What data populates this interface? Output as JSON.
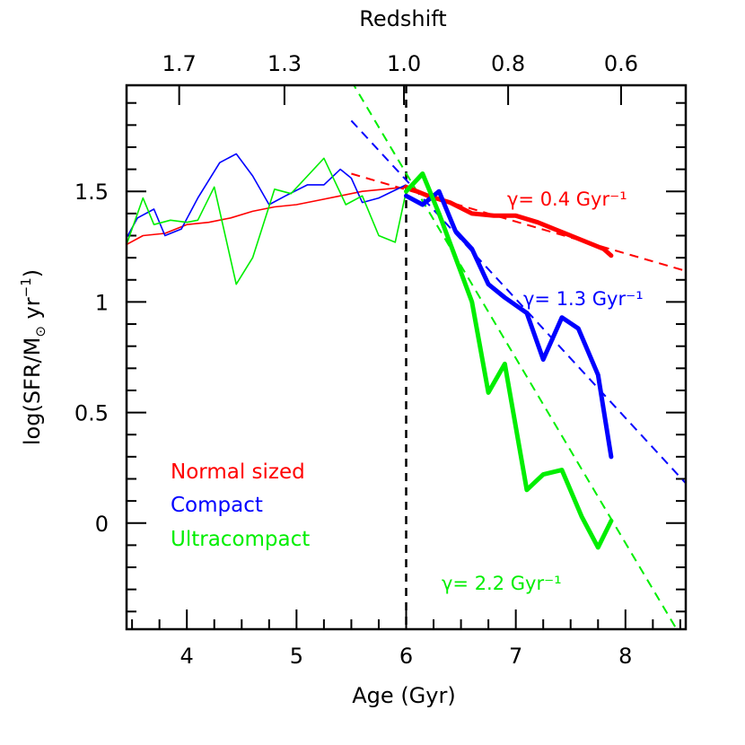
{
  "chart_data": {
    "type": "line",
    "xlabel": "Age (Gyr)",
    "x2label": "Redshift",
    "xlim": [
      3.45,
      8.55
    ],
    "ylim": [
      -0.48,
      1.98
    ],
    "x_ticks": [
      4,
      5,
      6,
      7,
      8
    ],
    "x_tick_labels": [
      "4",
      "5",
      "6",
      "7",
      "8"
    ],
    "y_ticks": [
      0,
      0.5,
      1,
      1.5
    ],
    "y_tick_labels": [
      "0",
      "0.5",
      "1",
      "1.5"
    ],
    "top_ticks": [
      {
        "age": 3.93,
        "label": "1.7"
      },
      {
        "age": 4.89,
        "label": "1.3"
      },
      {
        "age": 5.98,
        "label": "1.0"
      },
      {
        "age": 6.93,
        "label": "0.8"
      },
      {
        "age": 7.96,
        "label": "0.6"
      }
    ],
    "vline_age": 6.0,
    "colors": {
      "normal": "#ff0000",
      "compact": "#0000ff",
      "ultracompact": "#00ee00",
      "vline": "#000000"
    },
    "legend": [
      "Normal sized",
      "Compact",
      "Ultracompact"
    ],
    "series": [
      {
        "key": "normal",
        "name": "Normal sized",
        "thin": {
          "x": [
            3.45,
            3.6,
            3.8,
            4.0,
            4.2,
            4.4,
            4.6,
            4.8,
            5.0,
            5.2,
            5.4,
            5.6,
            5.8,
            6.0
          ],
          "y": [
            1.26,
            1.3,
            1.31,
            1.35,
            1.36,
            1.38,
            1.41,
            1.43,
            1.44,
            1.46,
            1.48,
            1.5,
            1.51,
            1.52
          ]
        },
        "thick": {
          "x": [
            6.0,
            6.2,
            6.4,
            6.6,
            6.8,
            7.0,
            7.2,
            7.4,
            7.6,
            7.8,
            7.87
          ],
          "y": [
            1.52,
            1.48,
            1.45,
            1.4,
            1.39,
            1.39,
            1.36,
            1.32,
            1.28,
            1.24,
            1.21
          ]
        },
        "fit": {
          "x": [
            5.5,
            8.55
          ],
          "y": [
            1.58,
            1.14
          ]
        },
        "fit_label": "γ= 0.4 Gyr⁻¹"
      },
      {
        "key": "compact",
        "name": "Compact",
        "thin": {
          "x": [
            3.45,
            3.55,
            3.7,
            3.8,
            3.95,
            4.1,
            4.3,
            4.45,
            4.6,
            4.75,
            4.9,
            5.1,
            5.25,
            5.4,
            5.5,
            5.6,
            5.75,
            6.0
          ],
          "y": [
            1.29,
            1.38,
            1.42,
            1.3,
            1.33,
            1.47,
            1.63,
            1.67,
            1.57,
            1.44,
            1.48,
            1.53,
            1.53,
            1.6,
            1.56,
            1.45,
            1.47,
            1.53
          ]
        },
        "thick": {
          "x": [
            6.0,
            6.15,
            6.3,
            6.45,
            6.6,
            6.75,
            6.9,
            7.1,
            7.25,
            7.42,
            7.57,
            7.75,
            7.87
          ],
          "y": [
            1.48,
            1.44,
            1.5,
            1.32,
            1.24,
            1.08,
            1.02,
            0.95,
            0.74,
            0.93,
            0.88,
            0.67,
            0.3
          ]
        },
        "fit": {
          "x": [
            5.5,
            8.55
          ],
          "y": [
            1.82,
            0.18
          ]
        },
        "fit_label": "γ= 1.3 Gyr⁻¹"
      },
      {
        "key": "ultracompact",
        "name": "Ultracompact",
        "thin": {
          "x": [
            3.45,
            3.6,
            3.7,
            3.85,
            4.0,
            4.1,
            4.25,
            4.45,
            4.6,
            4.8,
            4.95,
            5.1,
            5.25,
            5.45,
            5.6,
            5.75,
            5.9,
            6.0
          ],
          "y": [
            1.26,
            1.47,
            1.35,
            1.37,
            1.36,
            1.37,
            1.52,
            1.08,
            1.2,
            1.51,
            1.49,
            1.57,
            1.65,
            1.44,
            1.48,
            1.3,
            1.27,
            1.5
          ]
        },
        "thick": {
          "x": [
            6.0,
            6.15,
            6.3,
            6.45,
            6.6,
            6.75,
            6.9,
            7.1,
            7.25,
            7.42,
            7.6,
            7.75,
            7.87
          ],
          "y": [
            1.5,
            1.58,
            1.4,
            1.2,
            1.0,
            0.59,
            0.72,
            0.15,
            0.22,
            0.24,
            0.03,
            -0.11,
            0.01
          ]
        },
        "fit": {
          "x": [
            5.5,
            8.55
          ],
          "y": [
            2.0,
            -0.55
          ]
        },
        "fit_label": "γ= 2.2 Gyr⁻¹"
      }
    ]
  }
}
